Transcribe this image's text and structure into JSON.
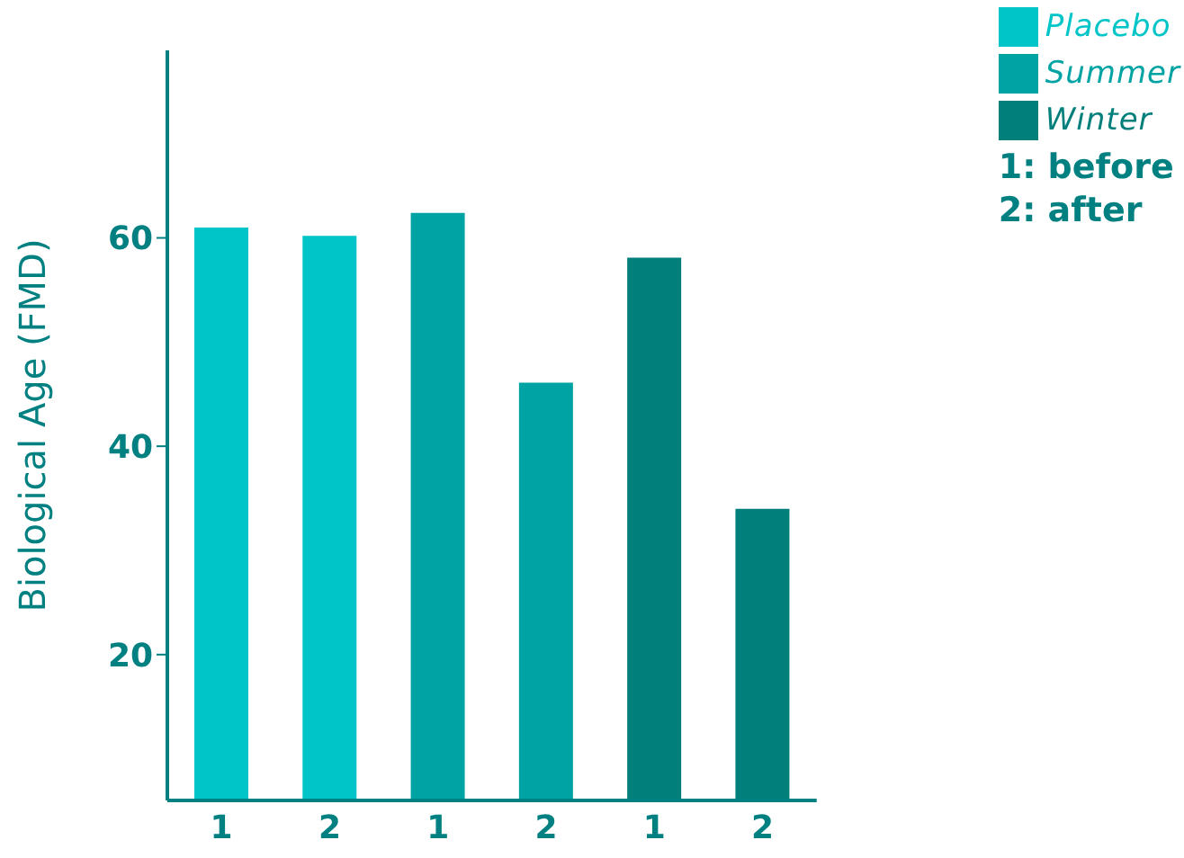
{
  "chart_data": {
    "type": "bar",
    "ylabel": "Biological Age (FMD)",
    "categories": [
      "1",
      "2",
      "1",
      "2",
      "1",
      "2"
    ],
    "series": [
      {
        "name": "Placebo",
        "color": "#00c5c8",
        "values": [
          61.0,
          60.2,
          null,
          null,
          null,
          null
        ]
      },
      {
        "name": "Summer",
        "color": "#00a3a3",
        "values": [
          null,
          null,
          62.4,
          46.1,
          null,
          null
        ]
      },
      {
        "name": "Winter",
        "color": "#007f7b",
        "values": [
          null,
          null,
          null,
          null,
          58.1,
          34.0
        ]
      }
    ],
    "stacked": true,
    "ylim": [
      6,
      78
    ],
    "yticks": [
      20,
      40,
      60
    ],
    "legend": "top right",
    "annotations": [
      "1: before",
      "2: after"
    ]
  }
}
